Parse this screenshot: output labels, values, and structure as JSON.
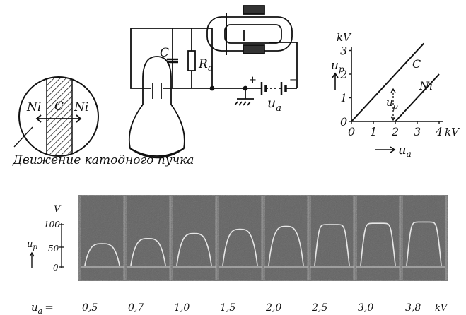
{
  "target_diagram": {
    "left_label": "Ni",
    "center_label": "C",
    "right_label": "Ni",
    "caption": "Движение катодного пучка"
  },
  "circuit": {
    "capacitor_label": "C",
    "resistor_label": "R",
    "resistor_sub": "a",
    "voltage_label": "u",
    "voltage_sub": "a",
    "plus": "+",
    "minus": "−"
  },
  "transfer_graph": {
    "y_unit": "kV",
    "y_ticks": [
      "0",
      "1",
      "2",
      "3"
    ],
    "x_ticks": [
      "0",
      "1",
      "2",
      "3",
      "4"
    ],
    "x_unit": "kV",
    "y_axis_label": "u",
    "y_axis_sub": "p",
    "x_axis_label": "u",
    "x_axis_sub": "a",
    "curve_c_label": "C",
    "curve_ni_label": "Ni",
    "delta_label": "u",
    "delta_sub": "p",
    "chart_data": {
      "type": "line",
      "xlabel": "u_a",
      "ylabel": "u_p",
      "xlim": [
        0,
        4
      ],
      "ylim": [
        0,
        3
      ],
      "series": [
        {
          "name": "C",
          "x": [
            0,
            3.3
          ],
          "y": [
            0,
            3.3
          ]
        },
        {
          "name": "Ni",
          "x": [
            2.0,
            4.0
          ],
          "y": [
            0,
            2.0
          ]
        }
      ]
    }
  },
  "oscillogram": {
    "y_unit": "V",
    "y_ticks": [
      "100",
      "50",
      "0"
    ],
    "y_axis_label": "u",
    "y_axis_sub": "p",
    "x_row_label": "u",
    "x_row_sub": "a",
    "x_row_eq": "=",
    "panel_values": [
      "0,5",
      "0,7",
      "1,0",
      "1,5",
      "2,0",
      "2,5",
      "3,0",
      "3,8"
    ],
    "panel_unit": "kV",
    "panel_peaks": [
      55,
      67,
      79,
      89,
      96,
      100,
      103,
      106
    ]
  }
}
